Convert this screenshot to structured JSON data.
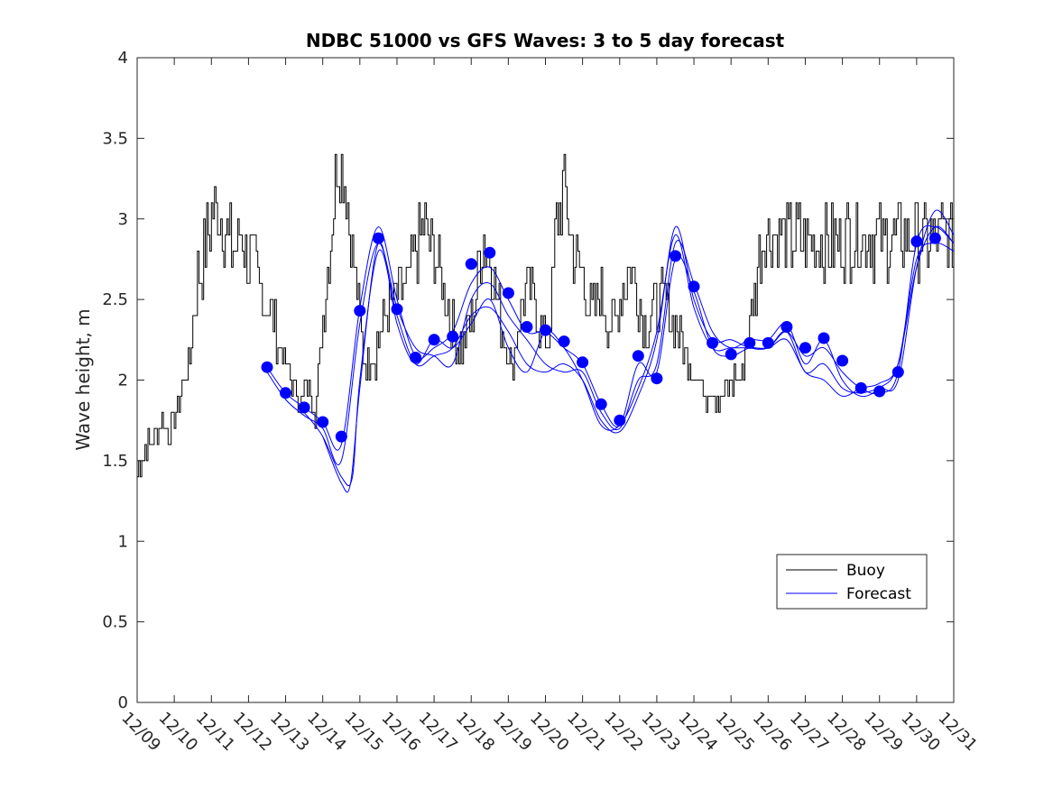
{
  "chart_data": {
    "type": "line",
    "title": "NDBC 51000 vs GFS Waves: 3 to 5 day forecast",
    "xlabel": "",
    "ylabel": "Wave height, m",
    "xlim": [
      0,
      22
    ],
    "ylim": [
      0,
      4
    ],
    "x_tick_labels": [
      "12/09",
      "12/10",
      "12/11",
      "12/12",
      "12/13",
      "12/14",
      "12/15",
      "12/16",
      "12/17",
      "12/18",
      "12/19",
      "12/20",
      "12/21",
      "12/22",
      "12/23",
      "12/24",
      "12/25",
      "12/26",
      "12/27",
      "12/28",
      "12/29",
      "12/30",
      "12/31"
    ],
    "y_ticks": [
      0,
      0.5,
      1,
      1.5,
      2,
      2.5,
      3,
      3.5,
      4
    ],
    "y_tick_labels": [
      "0",
      "0.5",
      "1",
      "1.5",
      "2",
      "2.5",
      "3",
      "3.5",
      "4"
    ],
    "legend": {
      "position": "lower-right",
      "entries": [
        {
          "label": "Buoy",
          "color": "#000000"
        },
        {
          "label": "Forecast",
          "color": "#0000ff"
        }
      ]
    },
    "colors": {
      "buoy": "#000000",
      "forecast": "#0000ff"
    },
    "buoy_anchors": {
      "x": [
        0.0,
        0.1,
        0.3,
        0.5,
        0.7,
        0.9,
        1.0,
        1.2,
        1.4,
        1.6,
        1.8,
        2.0,
        2.2,
        2.4,
        2.6,
        2.8,
        3.0,
        3.2,
        3.4,
        3.6,
        3.8,
        4.0,
        4.2,
        4.4,
        4.6,
        4.8,
        5.0,
        5.2,
        5.4,
        5.6,
        5.8,
        6.0,
        6.2,
        6.4,
        6.55,
        6.7,
        6.9,
        7.1,
        7.3,
        7.5,
        7.7,
        7.9,
        8.1,
        8.3,
        8.5,
        8.7,
        8.9,
        9.1,
        9.3,
        9.5,
        9.7,
        9.9,
        10.1,
        10.3,
        10.5,
        10.7,
        10.9,
        11.1,
        11.3,
        11.5,
        11.7,
        11.9,
        12.1,
        12.3,
        12.5,
        12.7,
        12.9,
        13.1,
        13.3,
        13.5,
        13.7,
        13.9,
        14.1,
        14.3,
        14.5,
        14.7,
        14.9,
        15.1,
        15.3,
        15.5,
        15.7,
        15.9,
        16.1,
        16.3,
        16.5,
        16.7,
        16.9,
        17.1,
        17.3,
        17.5,
        17.7,
        17.9,
        18.1,
        18.3,
        18.5,
        18.7,
        18.9,
        19.1,
        19.3,
        19.5,
        19.7,
        19.9,
        20.1,
        20.3,
        20.5,
        20.7,
        20.9,
        21.1,
        21.3,
        21.5,
        21.7,
        21.9,
        22.0
      ],
      "y": [
        1.45,
        1.5,
        1.6,
        1.7,
        1.72,
        1.7,
        1.75,
        1.95,
        2.1,
        2.6,
        2.8,
        3.0,
        3.05,
        2.9,
        2.8,
        2.9,
        2.75,
        2.65,
        2.5,
        2.4,
        2.2,
        2.1,
        1.95,
        1.85,
        2.0,
        1.8,
        2.4,
        2.9,
        3.4,
        3.2,
        2.8,
        2.3,
        2.1,
        2.2,
        2.3,
        2.45,
        2.5,
        2.55,
        2.6,
        2.8,
        2.95,
        2.85,
        2.7,
        2.5,
        2.35,
        2.2,
        2.3,
        2.5,
        2.9,
        2.8,
        2.5,
        2.25,
        2.05,
        2.4,
        2.6,
        2.5,
        2.25,
        2.3,
        3.0,
        3.2,
        2.85,
        2.7,
        2.5,
        2.4,
        2.55,
        2.3,
        2.4,
        2.6,
        2.7,
        2.5,
        2.35,
        2.4,
        2.5,
        2.45,
        2.35,
        2.2,
        2.1,
        2.0,
        1.92,
        1.95,
        1.85,
        1.95,
        2.0,
        2.05,
        2.35,
        2.7,
        2.9,
        2.95,
        2.9,
        2.85,
        2.9,
        2.88,
        2.85,
        2.87,
        2.85,
        2.87,
        2.88,
        2.87,
        2.9,
        2.9,
        2.88,
        2.86,
        2.85,
        2.88,
        2.9,
        2.9,
        2.88,
        2.87,
        2.85,
        2.88,
        2.9,
        2.9,
        2.9
      ]
    },
    "forecast_markers": {
      "x": [
        3.5,
        4.0,
        4.5,
        5.0,
        5.5,
        6.0,
        6.5,
        7.0,
        7.5,
        8.0,
        8.5,
        9.0,
        9.5,
        10.0,
        10.5,
        11.0,
        11.5,
        12.0,
        12.5,
        13.0,
        13.5,
        14.0,
        14.5,
        15.0,
        15.5,
        16.0,
        16.5,
        17.0,
        17.5,
        18.0,
        18.5,
        19.0,
        19.5,
        20.0,
        20.5,
        21.0,
        21.5
      ],
      "y": [
        2.08,
        1.92,
        1.83,
        1.74,
        1.65,
        2.43,
        2.88,
        2.44,
        2.14,
        2.25,
        2.27,
        2.72,
        2.79,
        2.54,
        2.33,
        2.31,
        2.24,
        2.11,
        1.85,
        1.75,
        2.15,
        2.01,
        2.77,
        2.58,
        2.23,
        2.16,
        2.23,
        2.23,
        2.33,
        2.2,
        2.26,
        2.12,
        1.95,
        1.93,
        2.05,
        2.86,
        2.88
      ]
    },
    "forecast_lines": [
      {
        "name": "Forecast",
        "x": [
          3.5,
          4.0,
          4.5,
          5.0,
          5.5,
          6.0,
          6.5,
          7.0,
          7.5,
          8.0,
          8.5,
          9.0,
          9.5,
          10.0,
          10.5,
          11.0,
          11.5,
          12.0,
          12.5,
          13.0,
          13.5,
          14.0,
          14.5,
          15.0,
          15.5,
          16.0,
          16.5,
          17.0,
          17.5,
          18.0,
          18.5,
          19.0,
          19.5,
          20.0,
          20.5,
          21.0,
          21.5,
          22.0
        ],
        "y": [
          2.08,
          1.92,
          1.83,
          1.74,
          1.6,
          2.45,
          2.95,
          2.5,
          2.15,
          2.2,
          2.3,
          2.6,
          2.7,
          2.5,
          2.3,
          2.3,
          2.2,
          2.1,
          1.85,
          1.72,
          2.1,
          2.05,
          2.75,
          2.55,
          2.2,
          2.15,
          2.2,
          2.2,
          2.3,
          2.15,
          2.2,
          2.05,
          1.95,
          1.92,
          2.05,
          2.85,
          2.95,
          2.85
        ]
      },
      {
        "name": "Forecast",
        "x": [
          3.5,
          4.0,
          4.5,
          5.0,
          5.5,
          6.0,
          6.5,
          7.0,
          7.5,
          8.0,
          8.5,
          9.0,
          9.5,
          10.0,
          10.5,
          11.0,
          11.5,
          12.0,
          12.5,
          13.0,
          13.5,
          14.0,
          14.5,
          15.0,
          15.5,
          16.0,
          16.5,
          17.0,
          17.5,
          18.0,
          18.5,
          19.0,
          19.5,
          20.0,
          20.5,
          21.0,
          21.5,
          22.0
        ],
        "y": [
          2.05,
          1.88,
          1.78,
          1.7,
          1.5,
          2.35,
          2.85,
          2.45,
          2.2,
          2.15,
          2.1,
          2.5,
          2.6,
          2.4,
          2.25,
          2.1,
          2.05,
          2.05,
          1.8,
          1.7,
          2.0,
          2.1,
          2.85,
          2.6,
          2.3,
          2.2,
          2.25,
          2.25,
          2.35,
          2.1,
          2.25,
          2.0,
          1.9,
          1.95,
          2.1,
          2.75,
          2.85,
          2.8
        ]
      },
      {
        "name": "Forecast",
        "x": [
          4.5,
          5.0,
          5.5,
          5.8,
          6.0,
          6.5,
          7.0,
          7.5,
          8.0,
          8.5,
          9.0,
          9.5,
          10.0,
          10.5,
          11.0,
          11.5,
          12.0,
          12.5,
          13.0,
          13.5,
          14.0,
          14.5,
          15.0,
          15.5,
          16.0,
          16.5,
          17.0,
          17.5,
          18.0,
          18.5,
          19.0,
          19.5,
          20.0,
          20.5,
          21.0,
          21.5,
          22.0
        ],
        "y": [
          1.8,
          1.65,
          1.4,
          1.4,
          2.0,
          2.8,
          2.4,
          2.1,
          2.15,
          2.2,
          2.4,
          2.45,
          2.3,
          2.1,
          2.05,
          2.1,
          2.0,
          1.75,
          1.68,
          1.9,
          2.25,
          2.95,
          2.5,
          2.25,
          2.25,
          2.2,
          2.2,
          2.3,
          2.05,
          2.1,
          1.95,
          1.92,
          1.95,
          2.0,
          2.7,
          3.05,
          2.9
        ]
      },
      {
        "name": "Forecast",
        "x": [
          5.0,
          5.5,
          5.75,
          6.0,
          6.5,
          7.0,
          7.5,
          8.0,
          8.5,
          9.0,
          9.5,
          10.0,
          10.5,
          11.0,
          11.5,
          12.0,
          12.5,
          13.0,
          13.5,
          14.0,
          14.5,
          15.0,
          15.5,
          16.0,
          16.5,
          17.0,
          17.5,
          18.0,
          18.5,
          19.0,
          19.5,
          20.0,
          20.5,
          21.0,
          21.5,
          22.0
        ],
        "y": [
          1.65,
          1.36,
          1.36,
          1.95,
          2.85,
          2.35,
          2.1,
          2.25,
          2.2,
          2.35,
          2.5,
          2.2,
          2.05,
          2.3,
          2.2,
          2.0,
          1.72,
          1.72,
          1.95,
          2.3,
          2.9,
          2.45,
          2.2,
          2.2,
          2.2,
          2.2,
          2.25,
          2.05,
          2.0,
          1.9,
          1.95,
          1.98,
          2.1,
          2.7,
          2.95,
          2.85
        ]
      }
    ]
  }
}
